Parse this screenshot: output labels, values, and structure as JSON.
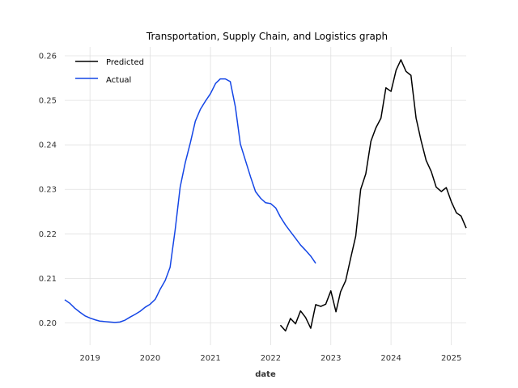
{
  "chart_data": {
    "type": "line",
    "title": "Transportation, Supply Chain, and Logistics graph",
    "xlabel": "date",
    "ylabel": "",
    "xlim": [
      "2018-08-01",
      "2025-04-01"
    ],
    "ylim": [
      0.195,
      0.262
    ],
    "x_ticks": [
      "2019",
      "2020",
      "2021",
      "2022",
      "2023",
      "2024",
      "2025"
    ],
    "y_ticks": [
      "0.20",
      "0.21",
      "0.22",
      "0.23",
      "0.24",
      "0.25",
      "0.26"
    ],
    "grid": true,
    "legend_position": "top-left",
    "series": [
      {
        "name": "Predicted",
        "color": "#000000",
        "points": [
          [
            "2022-03-01",
            0.1995
          ],
          [
            "2022-04-01",
            0.1982
          ],
          [
            "2022-05-01",
            0.201
          ],
          [
            "2022-06-01",
            0.1998
          ],
          [
            "2022-07-01",
            0.2027
          ],
          [
            "2022-08-01",
            0.2012
          ],
          [
            "2022-09-01",
            0.1988
          ],
          [
            "2022-10-01",
            0.2041
          ],
          [
            "2022-11-01",
            0.2037
          ],
          [
            "2022-12-01",
            0.2042
          ],
          [
            "2023-01-01",
            0.2072
          ],
          [
            "2023-02-01",
            0.2025
          ],
          [
            "2023-03-01",
            0.207
          ],
          [
            "2023-04-01",
            0.2095
          ],
          [
            "2023-05-01",
            0.2145
          ],
          [
            "2023-06-01",
            0.2195
          ],
          [
            "2023-07-01",
            0.23
          ],
          [
            "2023-08-01",
            0.2335
          ],
          [
            "2023-09-01",
            0.2408
          ],
          [
            "2023-10-01",
            0.2438
          ],
          [
            "2023-11-01",
            0.246
          ],
          [
            "2023-12-01",
            0.2528
          ],
          [
            "2024-01-01",
            0.252
          ],
          [
            "2024-02-01",
            0.2568
          ],
          [
            "2024-03-01",
            0.2591
          ],
          [
            "2024-04-01",
            0.2565
          ],
          [
            "2024-05-01",
            0.2556
          ],
          [
            "2024-06-01",
            0.246
          ],
          [
            "2024-07-01",
            0.241
          ],
          [
            "2024-08-01",
            0.2365
          ],
          [
            "2024-09-01",
            0.234
          ],
          [
            "2024-10-01",
            0.2305
          ],
          [
            "2024-11-01",
            0.2295
          ],
          [
            "2024-12-01",
            0.2304
          ],
          [
            "2025-01-01",
            0.2272
          ],
          [
            "2025-02-01",
            0.2247
          ],
          [
            "2025-03-01",
            0.224
          ],
          [
            "2025-04-01",
            0.2213
          ]
        ]
      },
      {
        "name": "Actual",
        "color": "#1446e6",
        "points": [
          [
            "2018-08-01",
            0.2052
          ],
          [
            "2018-09-01",
            0.2044
          ],
          [
            "2018-10-01",
            0.2033
          ],
          [
            "2018-11-01",
            0.2024
          ],
          [
            "2018-12-01",
            0.2016
          ],
          [
            "2019-01-01",
            0.2011
          ],
          [
            "2019-02-01",
            0.2007
          ],
          [
            "2019-03-01",
            0.2004
          ],
          [
            "2019-04-01",
            0.2003
          ],
          [
            "2019-05-01",
            0.2002
          ],
          [
            "2019-06-01",
            0.2001
          ],
          [
            "2019-07-01",
            0.2002
          ],
          [
            "2019-08-01",
            0.2006
          ],
          [
            "2019-09-01",
            0.2013
          ],
          [
            "2019-10-01",
            0.2019
          ],
          [
            "2019-11-01",
            0.2026
          ],
          [
            "2019-12-01",
            0.2035
          ],
          [
            "2020-01-01",
            0.2042
          ],
          [
            "2020-02-01",
            0.2053
          ],
          [
            "2020-03-01",
            0.2075
          ],
          [
            "2020-04-01",
            0.2095
          ],
          [
            "2020-05-01",
            0.2125
          ],
          [
            "2020-06-01",
            0.221
          ],
          [
            "2020-07-01",
            0.2305
          ],
          [
            "2020-08-01",
            0.236
          ],
          [
            "2020-09-01",
            0.2405
          ],
          [
            "2020-10-01",
            0.2453
          ],
          [
            "2020-11-01",
            0.248
          ],
          [
            "2020-12-01",
            0.2498
          ],
          [
            "2021-01-01",
            0.2515
          ],
          [
            "2021-02-01",
            0.2538
          ],
          [
            "2021-03-01",
            0.2548
          ],
          [
            "2021-04-01",
            0.2548
          ],
          [
            "2021-05-01",
            0.2542
          ],
          [
            "2021-06-01",
            0.2485
          ],
          [
            "2021-07-01",
            0.2402
          ],
          [
            "2021-08-01",
            0.2365
          ],
          [
            "2021-09-01",
            0.2328
          ],
          [
            "2021-10-01",
            0.2295
          ],
          [
            "2021-11-01",
            0.228
          ],
          [
            "2021-12-01",
            0.227
          ],
          [
            "2022-01-01",
            0.2268
          ],
          [
            "2022-02-01",
            0.2258
          ],
          [
            "2022-03-01",
            0.2238
          ],
          [
            "2022-04-01",
            0.222
          ],
          [
            "2022-05-01",
            0.2205
          ],
          [
            "2022-06-01",
            0.219
          ],
          [
            "2022-07-01",
            0.2175
          ],
          [
            "2022-08-01",
            0.2163
          ],
          [
            "2022-09-01",
            0.215
          ],
          [
            "2022-10-01",
            0.2134
          ]
        ]
      }
    ]
  }
}
